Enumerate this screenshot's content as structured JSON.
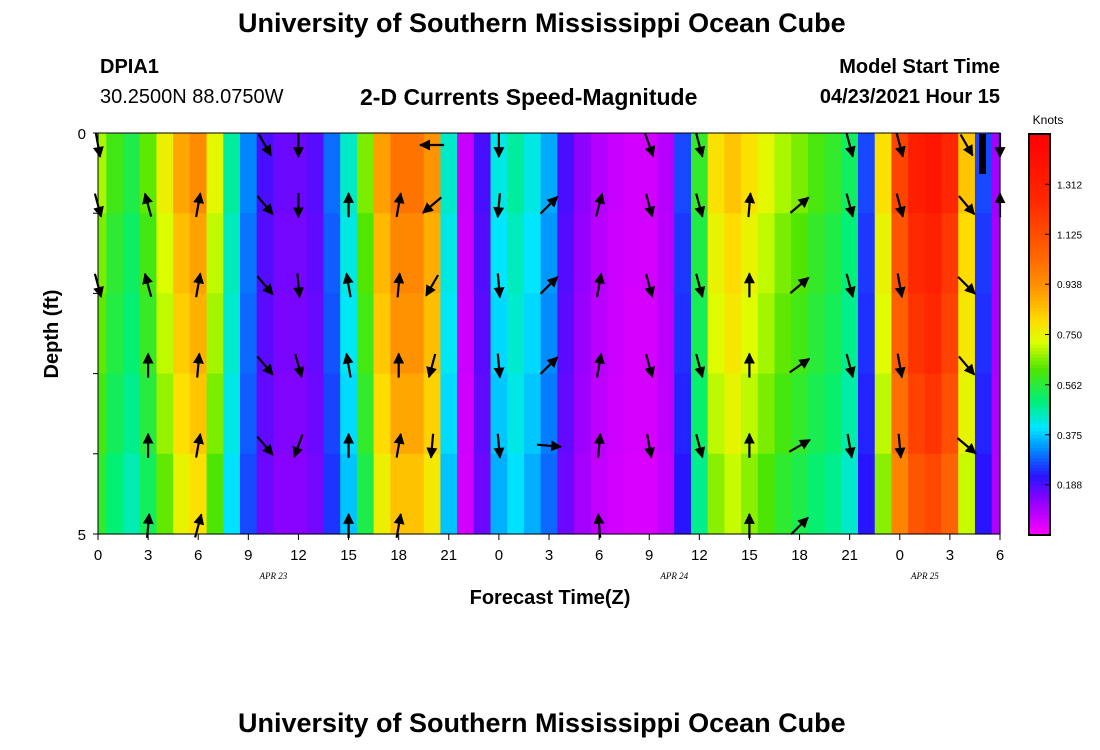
{
  "header": {
    "title": "University of Southern Mississippi Ocean Cube",
    "station_id": "DPIA1",
    "coords": "30.2500N  88.0750W",
    "subtitle": "2-D Currents Speed-Magnitude",
    "model_label": "Model Start Time",
    "model_time": "04/23/2021 Hour 15"
  },
  "footer": {
    "title": "University of Southern Mississippi Ocean Cube"
  },
  "chart_data": {
    "type": "heatmap",
    "title": "2-D Currents Speed-Magnitude",
    "xlabel": "Forecast Time(Z)",
    "ylabel": "Depth (ft)",
    "x_ticks": [
      "0",
      "3",
      "6",
      "9",
      "12",
      "15",
      "18",
      "21",
      "0",
      "3",
      "6",
      "9",
      "12",
      "15",
      "18",
      "21",
      "0",
      "3",
      "6"
    ],
    "date_labels": [
      {
        "text": "APR  23",
        "tick_index": 3.5
      },
      {
        "text": "APR  24",
        "tick_index": 11.5
      },
      {
        "text": "APR  25",
        "tick_index": 16.5
      }
    ],
    "y_ticks": [
      "0",
      "5"
    ],
    "ylim": [
      0,
      5
    ],
    "colorbar": {
      "unit": "Knots",
      "ticks": [
        "1.312",
        "1.125",
        "0.938",
        "0.750",
        "0.562",
        "0.375",
        "0.188"
      ],
      "range": [
        0,
        1.5
      ]
    },
    "hours": [
      0,
      1,
      2,
      3,
      4,
      5,
      6,
      7,
      8,
      9,
      10,
      11,
      12,
      13,
      14,
      15,
      16,
      17,
      18,
      19,
      20,
      21,
      22,
      23,
      24,
      25,
      26,
      27,
      28,
      29,
      30,
      31,
      32,
      33,
      34,
      35,
      36,
      37,
      38,
      39,
      40,
      41,
      42,
      43,
      44,
      45,
      46,
      47,
      48,
      49,
      50,
      51,
      52,
      53,
      54
    ],
    "speed_profile": [
      0.65,
      0.57,
      0.52,
      0.6,
      0.72,
      0.85,
      0.9,
      0.7,
      0.45,
      0.3,
      0.18,
      0.15,
      0.15,
      0.17,
      0.28,
      0.42,
      0.62,
      0.86,
      0.96,
      0.96,
      0.88,
      0.42,
      0.06,
      0.18,
      0.4,
      0.45,
      0.4,
      0.33,
      0.18,
      0.12,
      0.08,
      0.06,
      0.05,
      0.05,
      0.08,
      0.25,
      0.55,
      0.75,
      0.8,
      0.75,
      0.7,
      0.65,
      0.62,
      0.58,
      0.55,
      0.5,
      0.25,
      0.75,
      1.1,
      1.25,
      1.3,
      1.2,
      0.8,
      0.25,
      0.1
    ],
    "depth_factor": [
      1.05,
      1.0,
      0.97,
      0.93,
      0.88
    ],
    "speed_depth_0ft": [
      0.65,
      0.57,
      0.52,
      0.6,
      0.72,
      0.85,
      0.9,
      0.7,
      0.45,
      0.3,
      0.18,
      0.15,
      0.15,
      0.17,
      0.28,
      0.42,
      0.62,
      0.86,
      0.96,
      0.96,
      0.88,
      0.42,
      0.06,
      0.18,
      0.4,
      0.45,
      0.4,
      0.33,
      0.18,
      0.12,
      0.08,
      0.06,
      0.05,
      0.05,
      0.08,
      0.25,
      0.55,
      0.75,
      0.8,
      0.75,
      0.7,
      0.65,
      0.62,
      0.58,
      0.55,
      0.5,
      0.25,
      0.75,
      1.1,
      1.25,
      1.3,
      1.2,
      0.8,
      0.25,
      0.1
    ],
    "vector_hours": [
      0,
      3,
      6,
      10,
      12,
      15,
      18,
      20,
      24,
      27,
      30,
      33,
      36,
      39,
      42,
      45,
      48,
      52,
      54
    ],
    "vector_rows": [
      {
        "depth": 0,
        "dirs": [
          170,
          null,
          null,
          150,
          180,
          null,
          null,
          270,
          180,
          null,
          null,
          160,
          165,
          null,
          null,
          165,
          165,
          150,
          180
        ]
      },
      {
        "depth": 0.75,
        "dirs": [
          165,
          345,
          10,
          140,
          180,
          0,
          10,
          230,
          185,
          45,
          15,
          165,
          165,
          5,
          50,
          165,
          165,
          140,
          0
        ]
      },
      {
        "depth": 1.75,
        "dirs": [
          165,
          345,
          10,
          140,
          175,
          350,
          5,
          210,
          175,
          45,
          10,
          165,
          165,
          0,
          50,
          165,
          170,
          135,
          null
        ]
      },
      {
        "depth": 2.75,
        "dirs": [
          null,
          0,
          5,
          140,
          165,
          350,
          0,
          195,
          175,
          45,
          10,
          165,
          165,
          0,
          55,
          165,
          170,
          140,
          null
        ]
      },
      {
        "depth": 3.75,
        "dirs": [
          null,
          0,
          10,
          140,
          200,
          0,
          10,
          185,
          175,
          95,
          5,
          170,
          165,
          0,
          60,
          170,
          175,
          130,
          null
        ]
      },
      {
        "depth": 4.75,
        "dirs": [
          null,
          5,
          15,
          null,
          null,
          0,
          10,
          null,
          null,
          null,
          355,
          null,
          null,
          0,
          45,
          null,
          null,
          null,
          null
        ]
      }
    ]
  }
}
